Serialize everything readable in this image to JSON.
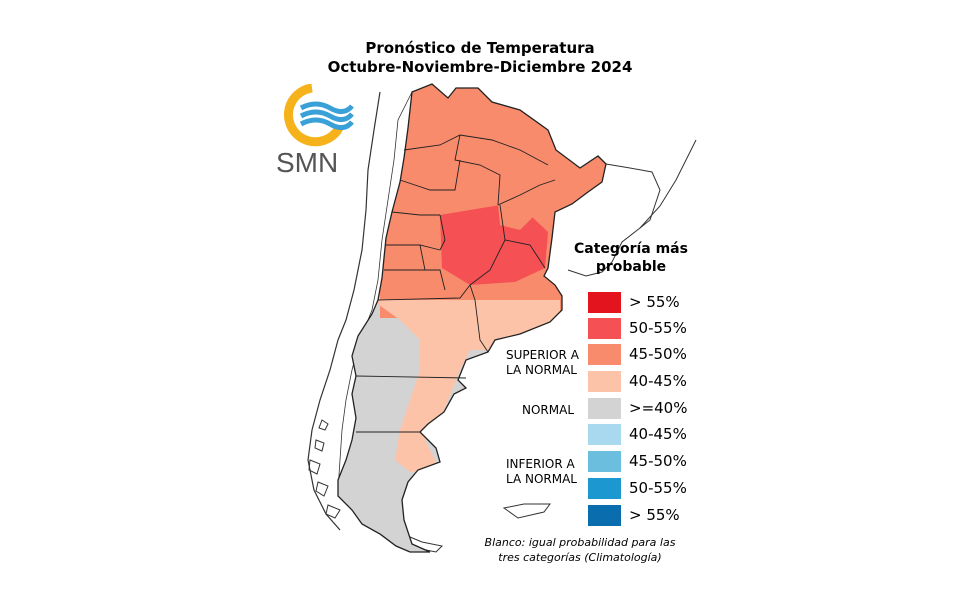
{
  "title": {
    "line1": "Pronóstico de Temperatura",
    "line2": "Octubre-Noviembre-Diciembre 2024"
  },
  "logo": {
    "text": "SMN",
    "colors": {
      "sun": "#f5b21a",
      "waves": "#39a0d8",
      "text": "#555555"
    }
  },
  "legend": {
    "heading": "Categoría más probable",
    "items": [
      {
        "label": "> 55%",
        "color": "#e3141e"
      },
      {
        "label": "50-55%",
        "color": "#f55053"
      },
      {
        "label": "45-50%",
        "color": "#f88b6c"
      },
      {
        "label": "40-45%",
        "color": "#fcc3a9"
      },
      {
        "label": ">=40%",
        "color": "#d3d3d3"
      },
      {
        "label": "40-45%",
        "color": "#a8d9ee"
      },
      {
        "label": "45-50%",
        "color": "#6cbedf"
      },
      {
        "label": "50-55%",
        "color": "#1c97cf"
      },
      {
        "label": "> 55%",
        "color": "#0a6dae"
      }
    ],
    "groups": {
      "superior": "SUPERIOR A LA NORMAL",
      "normal": "NORMAL",
      "inferior": "INFERIOR A LA NORMAL"
    }
  },
  "note": "Blanco: igual probabilidad para las tres categorías (Climatología)",
  "map_colors": {
    "north": "#f88b6c",
    "core": "#f55053",
    "light": "#fcc3a9",
    "patagonia": "#d3d3d3",
    "outline": "#222222"
  }
}
